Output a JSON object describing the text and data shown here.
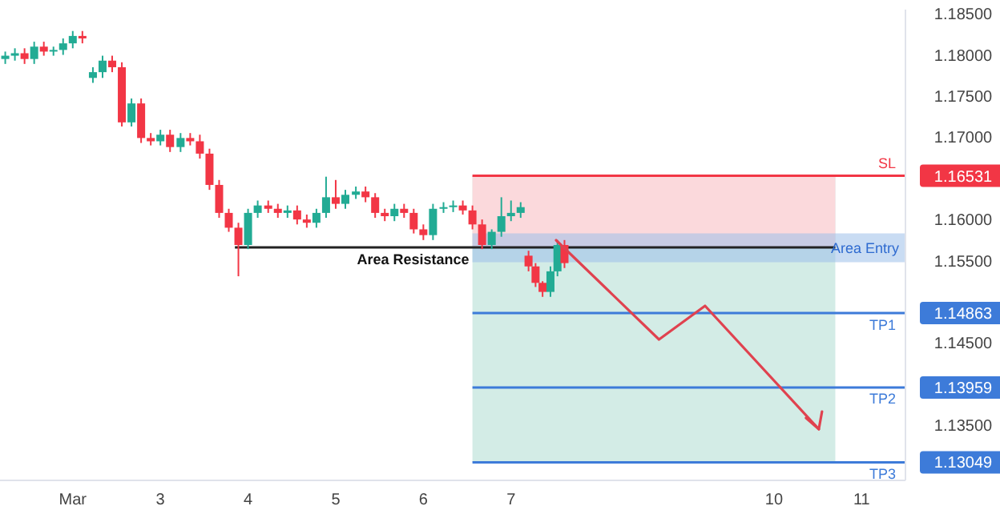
{
  "chart_data": {
    "type": "candlestick",
    "x": [
      1.23,
      1.34,
      1.45,
      1.56,
      1.67,
      1.78,
      1.89,
      2.0,
      2.11,
      2.23,
      2.34,
      2.45,
      2.56,
      2.67,
      2.78,
      2.89,
      3.0,
      3.11,
      3.23,
      3.34,
      3.45,
      3.56,
      3.67,
      3.78,
      3.89,
      4.0,
      4.11,
      4.23,
      4.34,
      4.45,
      4.56,
      4.67,
      4.78,
      4.89,
      5.0,
      5.11,
      5.23,
      5.34,
      5.45,
      5.56,
      5.67,
      5.78,
      5.89,
      6.0,
      6.11,
      6.23,
      6.34,
      6.45,
      6.56,
      6.67,
      6.78,
      6.89,
      7.0,
      7.11,
      7.2,
      7.28,
      7.36,
      7.45,
      7.53,
      7.61
    ],
    "ohlc": [
      [
        1.1795,
        1.1804,
        1.1789,
        1.1799
      ],
      [
        1.1799,
        1.1808,
        1.1793,
        1.1802
      ],
      [
        1.1802,
        1.1808,
        1.1789,
        1.1795
      ],
      [
        1.1795,
        1.1816,
        1.1789,
        1.181
      ],
      [
        1.181,
        1.1816,
        1.1799,
        1.1804
      ],
      [
        1.1804,
        1.181,
        1.1799,
        1.1806
      ],
      [
        1.1806,
        1.182,
        1.18,
        1.1814
      ],
      [
        1.1814,
        1.1829,
        1.1808,
        1.1823
      ],
      [
        1.1823,
        1.1829,
        1.1814,
        1.182
      ],
      [
        1.1772,
        1.1785,
        1.1766,
        1.1779
      ],
      [
        1.1779,
        1.1799,
        1.1772,
        1.1793
      ],
      [
        1.1793,
        1.1799,
        1.1779,
        1.1785
      ],
      [
        1.1785,
        1.1791,
        1.1713,
        1.1718
      ],
      [
        1.1718,
        1.1747,
        1.1713,
        1.1741
      ],
      [
        1.1741,
        1.1747,
        1.1693,
        1.1699
      ],
      [
        1.1699,
        1.1705,
        1.169,
        1.1695
      ],
      [
        1.1695,
        1.1709,
        1.169,
        1.1703
      ],
      [
        1.1703,
        1.1709,
        1.1682,
        1.1688
      ],
      [
        1.1688,
        1.1705,
        1.1682,
        1.1699
      ],
      [
        1.1699,
        1.1705,
        1.169,
        1.1695
      ],
      [
        1.1695,
        1.1703,
        1.1674,
        1.168
      ],
      [
        1.168,
        1.1686,
        1.1636,
        1.1642
      ],
      [
        1.1642,
        1.1648,
        1.1602,
        1.1608
      ],
      [
        1.1608,
        1.1613,
        1.1585,
        1.159
      ],
      [
        1.159,
        1.1596,
        1.1531,
        1.1569
      ],
      [
        1.1569,
        1.1613,
        1.1564,
        1.1608
      ],
      [
        1.1608,
        1.1623,
        1.1602,
        1.1617
      ],
      [
        1.1617,
        1.1623,
        1.1608,
        1.1613
      ],
      [
        1.1613,
        1.1619,
        1.1602,
        1.1608
      ],
      [
        1.1608,
        1.1617,
        1.1602,
        1.1611
      ],
      [
        1.1611,
        1.1617,
        1.1594,
        1.16
      ],
      [
        1.16,
        1.1606,
        1.159,
        1.1596
      ],
      [
        1.1596,
        1.1613,
        1.159,
        1.1608
      ],
      [
        1.1608,
        1.1652,
        1.1602,
        1.1627
      ],
      [
        1.1627,
        1.1648,
        1.1613,
        1.1619
      ],
      [
        1.1619,
        1.1636,
        1.1613,
        1.163
      ],
      [
        1.163,
        1.164,
        1.1625,
        1.1634
      ],
      [
        1.1634,
        1.164,
        1.1621,
        1.1627
      ],
      [
        1.1627,
        1.1632,
        1.1602,
        1.1608
      ],
      [
        1.1608,
        1.1613,
        1.1598,
        1.1604
      ],
      [
        1.1604,
        1.1619,
        1.1598,
        1.1613
      ],
      [
        1.1613,
        1.1619,
        1.1602,
        1.1608
      ],
      [
        1.1608,
        1.1613,
        1.1583,
        1.1588
      ],
      [
        1.1588,
        1.1594,
        1.1575,
        1.1581
      ],
      [
        1.1581,
        1.1619,
        1.1575,
        1.1613
      ],
      [
        1.1613,
        1.1621,
        1.1608,
        1.1615
      ],
      [
        1.1615,
        1.1623,
        1.1609,
        1.1617
      ],
      [
        1.1617,
        1.1623,
        1.1606,
        1.1611
      ],
      [
        1.1611,
        1.1617,
        1.1588,
        1.1594
      ],
      [
        1.1594,
        1.16,
        1.1564,
        1.1569
      ],
      [
        1.1569,
        1.1588,
        1.1564,
        1.1585
      ],
      [
        1.1585,
        1.1627,
        1.1579,
        1.1604
      ],
      [
        1.1604,
        1.1623,
        1.1598,
        1.1608
      ],
      [
        1.1608,
        1.1621,
        1.1602,
        1.1615
      ],
      [
        1.1556,
        1.1562,
        1.1537,
        1.1543
      ],
      [
        1.1543,
        1.1547,
        1.1518,
        1.1523
      ],
      [
        1.1523,
        1.1525,
        1.1506,
        1.1512
      ],
      [
        1.1512,
        1.1543,
        1.1506,
        1.1537
      ],
      [
        1.1537,
        1.1575,
        1.1531,
        1.1569
      ],
      [
        1.1569,
        1.1575,
        1.1541,
        1.1547
      ]
    ],
    "colors": [
      "#22ab94",
      "#22ab94",
      "#f23645",
      "#22ab94",
      "#f23645",
      "#22ab94",
      "#22ab94",
      "#22ab94",
      "#f23645",
      "#22ab94",
      "#22ab94",
      "#f23645",
      "#f23645",
      "#22ab94",
      "#f23645",
      "#f23645",
      "#22ab94",
      "#f23645",
      "#22ab94",
      "#f23645",
      "#f23645",
      "#f23645",
      "#f23645",
      "#f23645",
      "#f23645",
      "#22ab94",
      "#22ab94",
      "#f23645",
      "#f23645",
      "#22ab94",
      "#f23645",
      "#f23645",
      "#22ab94",
      "#22ab94",
      "#f23645",
      "#22ab94",
      "#22ab94",
      "#f23645",
      "#f23645",
      "#f23645",
      "#22ab94",
      "#f23645",
      "#f23645",
      "#f23645",
      "#22ab94",
      "#22ab94",
      "#22ab94",
      "#f23645",
      "#f23645",
      "#f23645",
      "#22ab94",
      "#22ab94",
      "#22ab94",
      "#22ab94",
      "#f23645",
      "#f23645",
      "#f23645",
      "#22ab94",
      "#22ab94",
      "#f23645"
    ],
    "series": [
      {
        "type": "line",
        "color": "#222222",
        "x": [
          3.85,
          10.7
        ],
        "values": [
          1.1566,
          1.1566
        ]
      }
    ],
    "xlim": [
      1.17,
      11.5
    ],
    "xticks": [
      {
        "value": 2,
        "label": "Mar"
      },
      3,
      4,
      5,
      6,
      7,
      10,
      11
    ],
    "ylim": [
      1.1283,
      1.1855
    ],
    "yticks": [
      1.13049,
      {
        "value": 1.135,
        "label": "1.13500"
      },
      1.13959,
      {
        "value": 1.145,
        "label": "1.14500"
      },
      1.14863,
      {
        "value": 1.155,
        "label": "1.15500"
      },
      {
        "value": 1.16,
        "label": "1.16000"
      },
      1.16531,
      {
        "value": 1.17,
        "label": "1.17000"
      },
      {
        "value": 1.175,
        "label": "1.17500"
      },
      {
        "value": 1.18,
        "label": "1.18000"
      },
      {
        "value": 1.185,
        "label": "1.18500"
      }
    ],
    "bands": [
      {
        "axis": "x",
        "from": 6.56,
        "to": 10.7,
        "color": "#d3ece6"
      },
      {
        "axis": "y",
        "from": 1.1566,
        "to": 1.16531,
        "color": "#fbd9dc"
      },
      {
        "axis": "y",
        "from": 1.1548,
        "to": 1.1583,
        "color": "#9dbfe9",
        "label": "Area Entry"
      }
    ],
    "ref_lines": [
      {
        "axis": "y",
        "value": 1.16531,
        "label": "SL",
        "color": "#f23645"
      },
      {
        "axis": "y",
        "value": 1.14863,
        "label": "TP1",
        "color": "#3d7bd9"
      },
      {
        "axis": "y",
        "value": 1.13959,
        "label": "TP2",
        "color": "#3d7bd9"
      },
      {
        "axis": "y",
        "value": 1.13049,
        "label": "TP3",
        "color": "#3d7bd9"
      }
    ],
    "annotations": [
      {
        "text": "Area Resistance",
        "x": 6.56,
        "y": 1.1566
      }
    ]
  }
}
